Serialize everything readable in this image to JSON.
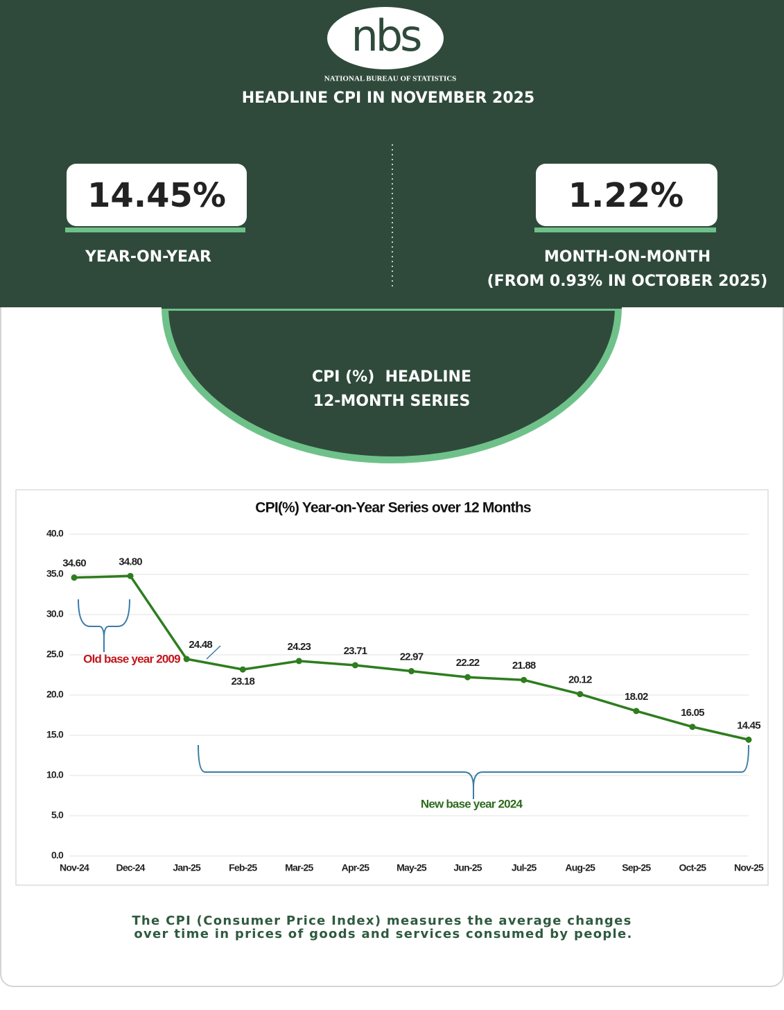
{
  "logo": {
    "mark": "nbs",
    "name": "NATIONAL BUREAU OF STATISTICS"
  },
  "header": {
    "title": "HEADLINE CPI IN NOVEMBER 2025"
  },
  "highlights": [
    {
      "value": "14.45%",
      "label": "YEAR-ON-YEAR"
    },
    {
      "value": "1.22%",
      "label": "MONTH-ON-MONTH",
      "note": "(FROM 0.93% IN OCTOBER 2025)"
    }
  ],
  "banner": [
    "CPI (%)  HEADLINE",
    "12-MONTH SERIES"
  ],
  "chart_data": {
    "type": "line",
    "title": "CPI(%) Year-on-Year Series over 12 Months",
    "categories": [
      "Nov-24",
      "Dec-24",
      "Jan-25",
      "Feb-25",
      "Mar-25",
      "Apr-25",
      "May-25",
      "Jun-25",
      "Jul-25",
      "Aug-25",
      "Sep-25",
      "Oct-25",
      "Nov-25"
    ],
    "values": [
      34.6,
      34.8,
      24.48,
      23.18,
      24.23,
      23.71,
      22.97,
      22.22,
      21.88,
      20.12,
      18.02,
      16.05,
      14.45
    ],
    "value_labels": [
      "34.60",
      "34.80",
      "24.48",
      "23.18",
      "24.23",
      "23.71",
      "22.97",
      "22.22",
      "21.88",
      "20.12",
      "18.02",
      "16.05",
      "14.45"
    ],
    "color": "#2e7d1f",
    "ylim": [
      0,
      40
    ],
    "yticks": [
      {
        "value": 0,
        "label": "0.0"
      },
      {
        "value": 5,
        "label": "5.0"
      },
      {
        "value": 10,
        "label": "10.0"
      },
      {
        "value": 15,
        "label": "15.0"
      },
      {
        "value": 20,
        "label": "20.0"
      },
      {
        "value": 25,
        "label": "25.0"
      },
      {
        "value": 30,
        "label": "30.0"
      },
      {
        "value": 35,
        "label": "35.0"
      },
      {
        "value": 40,
        "label": "40.0"
      }
    ],
    "grid": true,
    "annotations": [
      "Old base year 2009",
      "New base year 2024"
    ]
  },
  "footer": [
    "The CPI (Consumer Price Index) measures the average changes",
    "over time in prices of goods and services consumed by people."
  ]
}
